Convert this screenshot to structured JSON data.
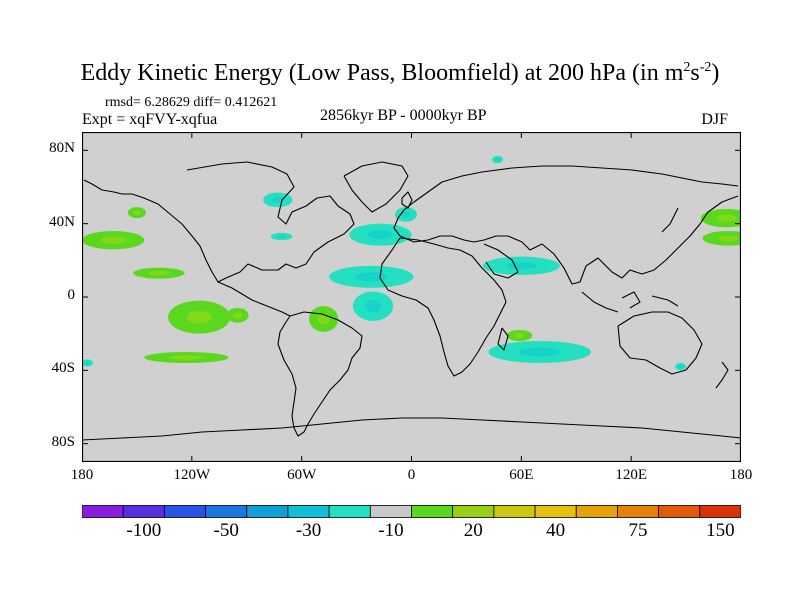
{
  "title": {
    "main": "Eddy Kinetic Energy (Low Pass, Bloomfield) at 200 hPa (in m",
    "sup1": "2",
    "mid": "s",
    "sup2": "-2",
    "end": ")"
  },
  "stats": "rmsd= 6.28629 diff= 0.412621",
  "expt": "Expt = xqFVY-xqfua",
  "period": "2856kyr BP - 0000kyr BP",
  "season": "DJF",
  "y_ticks": [
    {
      "label": "80N",
      "lat": 80
    },
    {
      "label": "40N",
      "lat": 40
    },
    {
      "label": "0",
      "lat": 0
    },
    {
      "label": "40S",
      "lat": -40
    },
    {
      "label": "80S",
      "lat": -80
    }
  ],
  "x_ticks": [
    {
      "label": "180",
      "lon": -180
    },
    {
      "label": "120W",
      "lon": -120
    },
    {
      "label": "60W",
      "lon": -60
    },
    {
      "label": "0",
      "lon": 0
    },
    {
      "label": "60E",
      "lon": 60
    },
    {
      "label": "120E",
      "lon": 120
    },
    {
      "label": "180",
      "lon": 180
    }
  ],
  "colorbar": {
    "colors": [
      "#8a1ee0",
      "#5a2ee0",
      "#2a52e6",
      "#1a78e0",
      "#0fa0d8",
      "#10c0d8",
      "#22e0c0",
      "#c8c8c8",
      "#5ad81e",
      "#98d018",
      "#c8c810",
      "#e6c00c",
      "#e6a008",
      "#e68008",
      "#e25a08",
      "#dc3008"
    ],
    "labels": [
      {
        "text": "-100",
        "boundary": 2
      },
      {
        "text": "-50",
        "boundary": 4
      },
      {
        "text": "-30",
        "boundary": 6
      },
      {
        "text": "-10",
        "boundary": 8
      },
      {
        "text": "20",
        "boundary": 10
      },
      {
        "text": "40",
        "boundary": 12
      },
      {
        "text": "75",
        "boundary": 14
      },
      {
        "text": "150",
        "boundary": 16
      }
    ]
  },
  "map_data": {
    "background": "#d0d0d0",
    "positive_color": "#5ad81e",
    "positive_light": "#a0d818",
    "negative_color": "#22e0c0",
    "negative_dark": "#10c8d0",
    "anomalies": [
      {
        "name": "anomaly-n-pacific-positive",
        "sign": "pos",
        "lon": -163,
        "lat": 31,
        "rlon": 17,
        "rlat": 5
      },
      {
        "name": "anomaly-sw-pacific-positive",
        "sign": "pos",
        "lon": -138,
        "lat": 13,
        "rlon": 14,
        "rlat": 3
      },
      {
        "name": "anomaly-central-pacific-positive",
        "sign": "pos",
        "lon": -116,
        "lat": -11,
        "rlon": 17,
        "rlat": 9
      },
      {
        "name": "anomaly-tropical-east-pacific-positive",
        "sign": "pos",
        "lon": -95,
        "lat": -10,
        "rlon": 6,
        "rlat": 4
      },
      {
        "name": "anomaly-south-pacific-positive",
        "sign": "pos",
        "lon": -123,
        "lat": -33,
        "rlon": 23,
        "rlat": 3
      },
      {
        "name": "anomaly-n-america-positive",
        "sign": "pos",
        "lon": -150,
        "lat": 46,
        "rlon": 5,
        "rlat": 3
      },
      {
        "name": "anomaly-south-america-positive",
        "sign": "pos",
        "lon": -48,
        "lat": -12,
        "rlon": 8,
        "rlat": 7
      },
      {
        "name": "anomaly-south-indian-positive",
        "sign": "pos",
        "lon": 59,
        "lat": -21,
        "rlon": 7,
        "rlat": 3
      },
      {
        "name": "anomaly-west-pacific-positive",
        "sign": "pos",
        "lon": 172,
        "lat": 43,
        "rlon": 14,
        "rlat": 5
      },
      {
        "name": "anomaly-far-west-pacific-positive",
        "sign": "pos",
        "lon": 173,
        "lat": 32,
        "rlon": 14,
        "rlat": 4
      },
      {
        "name": "anomaly-hudson-bay-negative",
        "sign": "neg",
        "lon": -73,
        "lat": 53,
        "rlon": 8,
        "rlat": 4
      },
      {
        "name": "anomaly-us-east-coast-negative",
        "sign": "neg",
        "lon": -71,
        "lat": 33,
        "rlon": 6,
        "rlat": 2
      },
      {
        "name": "anomaly-north-atlantic-negative",
        "sign": "neg",
        "lon": -17,
        "lat": 34,
        "rlon": 17,
        "rlat": 6
      },
      {
        "name": "anomaly-europe-negative",
        "sign": "neg",
        "lon": -3,
        "lat": 45,
        "rlon": 6,
        "rlat": 4
      },
      {
        "name": "anomaly-tropical-atlantic-negative",
        "sign": "neg",
        "lon": -22,
        "lat": 11,
        "rlon": 23,
        "rlat": 6
      },
      {
        "name": "anomaly-south-atlantic-negative",
        "sign": "neg",
        "lon": -21,
        "lat": -5,
        "rlon": 11,
        "rlat": 8
      },
      {
        "name": "anomaly-middle-east-negative",
        "sign": "neg",
        "lon": 60,
        "lat": 17,
        "rlon": 21,
        "rlat": 5
      },
      {
        "name": "anomaly-south-indian-negative",
        "sign": "neg",
        "lon": 70,
        "lat": -30,
        "rlon": 28,
        "rlat": 6
      },
      {
        "name": "anomaly-arctic-negative",
        "sign": "neg",
        "lon": 47,
        "lat": 75,
        "rlon": 3,
        "rlat": 2
      },
      {
        "name": "anomaly-australia-east-negative",
        "sign": "neg",
        "lon": 147,
        "lat": -38,
        "rlon": 3,
        "rlat": 2
      },
      {
        "name": "anomaly-dateline-west-negative",
        "sign": "neg",
        "lon": -177,
        "lat": -36,
        "rlon": 3,
        "rlat": 2
      }
    ]
  }
}
